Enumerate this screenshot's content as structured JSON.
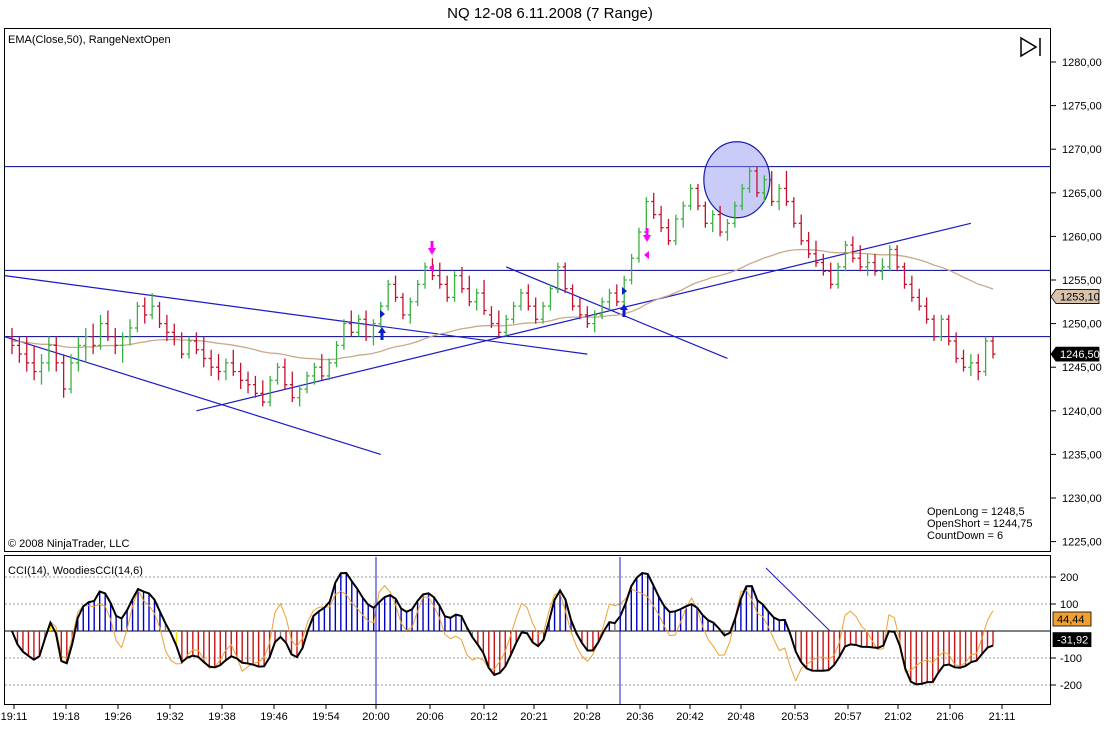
{
  "window": {
    "title": "NQ 12-08  6.11.2008 (7 Range)"
  },
  "upper_panel": {
    "indicator_label": "EMA(Close,50), RangeNextOpen",
    "copyright": "© 2008 NinjaTrader, LLC",
    "info_lines": [
      "OpenLong = 1248,5",
      "OpenShort = 1244,75",
      "CountDown = 6"
    ],
    "price_ticks": [
      "1280,00",
      "1275,00",
      "1270,00",
      "1265,00",
      "1260,00",
      "1255,00",
      "1250,00",
      "1245,00",
      "1240,00",
      "1235,00",
      "1230,00",
      "1225,00"
    ],
    "ema_label": "1253,10",
    "last_price_label": "1246,50",
    "play_icon": "play-pause-icon"
  },
  "lower_panel": {
    "indicator_label": "CCI(14), WoodiesCCI(14,6)",
    "cci_ticks": [
      "200",
      "100",
      "-100",
      "-200"
    ],
    "cci_value_label": "44,44",
    "woodies_value_label": "-31,92"
  },
  "time_axis": [
    "19:11",
    "19:18",
    "19:26",
    "19:32",
    "19:38",
    "19:46",
    "19:54",
    "20:00",
    "20:06",
    "20:12",
    "20:21",
    "20:28",
    "20:36",
    "20:42",
    "20:48",
    "20:53",
    "20:57",
    "21:02",
    "21:06",
    "21:11"
  ],
  "colors": {
    "up_bar": "#3cb043",
    "down_bar": "#c8102e",
    "trendline": "#1a1ac8",
    "ema": "#c9a98a",
    "circle_fill": "#8a8ff0",
    "buy_arrow": "#0a1ecc",
    "sell_arrow": "#ff00ff",
    "cci_orange": "#f0a030",
    "hist_blue": "#0000c8",
    "hist_red": "#c81414",
    "hist_gray": "#808080",
    "hist_yellow": "#ffe000"
  },
  "chart_data": [
    {
      "type": "candlestick",
      "title": "NQ 12-08  6.11.2008 (7 Range)",
      "ylim": [
        1225,
        1282
      ],
      "ema_last": 1253.1,
      "last_price": 1246.5,
      "horizontal_levels": [
        1268.0,
        1256.1,
        1248.5
      ],
      "bars": [
        [
          1248.5,
          1249.5,
          1246.5,
          1247.5
        ],
        [
          1247.5,
          1248.5,
          1245.5,
          1246.5
        ],
        [
          1246.5,
          1248.5,
          1244.5,
          1245.5
        ],
        [
          1245.5,
          1247.5,
          1243.5,
          1244.5
        ],
        [
          1244.5,
          1246.5,
          1243.0,
          1245.5
        ],
        [
          1245.5,
          1248.5,
          1244.5,
          1247.5
        ],
        [
          1247.5,
          1248.5,
          1244.5,
          1245.5
        ],
        [
          1245.5,
          1246.5,
          1241.5,
          1242.5
        ],
        [
          1242.5,
          1246.5,
          1242.0,
          1245.5
        ],
        [
          1245.5,
          1248.5,
          1244.5,
          1247.5
        ],
        [
          1247.5,
          1249.5,
          1245.5,
          1248.5
        ],
        [
          1248.5,
          1250.0,
          1246.5,
          1247.5
        ],
        [
          1247.5,
          1251.0,
          1247.0,
          1250.0
        ],
        [
          1250.0,
          1251.5,
          1248.0,
          1248.5
        ],
        [
          1248.5,
          1249.5,
          1246.5,
          1247.5
        ],
        [
          1247.5,
          1249.0,
          1245.5,
          1248.5
        ],
        [
          1248.5,
          1250.5,
          1247.5,
          1249.5
        ],
        [
          1249.5,
          1252.5,
          1249.0,
          1252.0
        ],
        [
          1252.0,
          1253.0,
          1250.0,
          1251.0
        ],
        [
          1251.0,
          1253.5,
          1250.5,
          1252.0
        ],
        [
          1252.0,
          1252.5,
          1249.5,
          1250.0
        ],
        [
          1250.0,
          1251.0,
          1248.0,
          1249.0
        ],
        [
          1249.0,
          1250.0,
          1247.5,
          1248.5
        ],
        [
          1248.5,
          1249.0,
          1246.0,
          1246.5
        ],
        [
          1246.5,
          1248.5,
          1246.0,
          1248.0
        ],
        [
          1248.0,
          1249.0,
          1246.5,
          1247.0
        ],
        [
          1247.0,
          1248.5,
          1245.0,
          1246.0
        ],
        [
          1246.0,
          1247.0,
          1244.0,
          1245.0
        ],
        [
          1245.0,
          1246.5,
          1243.5,
          1244.5
        ],
        [
          1244.5,
          1246.0,
          1243.5,
          1245.5
        ],
        [
          1245.5,
          1247.0,
          1244.0,
          1244.5
        ],
        [
          1244.5,
          1245.5,
          1242.5,
          1243.5
        ],
        [
          1243.5,
          1244.5,
          1242.0,
          1243.0
        ],
        [
          1243.0,
          1244.0,
          1241.5,
          1242.0
        ],
        [
          1242.0,
          1243.5,
          1240.5,
          1241.0
        ],
        [
          1241.0,
          1244.0,
          1240.5,
          1243.5
        ],
        [
          1243.5,
          1245.5,
          1243.0,
          1245.0
        ],
        [
          1245.0,
          1246.0,
          1242.5,
          1243.0
        ],
        [
          1243.0,
          1244.5,
          1241.0,
          1241.5
        ],
        [
          1241.5,
          1243.0,
          1240.5,
          1242.5
        ],
        [
          1242.5,
          1244.5,
          1242.0,
          1244.0
        ],
        [
          1244.0,
          1245.5,
          1243.0,
          1245.0
        ],
        [
          1245.0,
          1246.5,
          1243.5,
          1244.0
        ],
        [
          1244.0,
          1246.0,
          1243.5,
          1245.5
        ],
        [
          1245.5,
          1248.0,
          1245.0,
          1247.5
        ],
        [
          1247.5,
          1250.5,
          1247.0,
          1250.0
        ],
        [
          1250.0,
          1251.5,
          1248.5,
          1249.0
        ],
        [
          1249.0,
          1251.0,
          1248.5,
          1250.5
        ],
        [
          1250.5,
          1251.5,
          1248.0,
          1248.5
        ],
        [
          1248.5,
          1250.5,
          1247.5,
          1250.0
        ],
        [
          1250.0,
          1252.5,
          1249.5,
          1252.0
        ],
        [
          1252.0,
          1255.0,
          1251.5,
          1254.5
        ],
        [
          1254.5,
          1255.5,
          1252.5,
          1253.0
        ],
        [
          1253.0,
          1253.5,
          1250.5,
          1251.0
        ],
        [
          1251.0,
          1253.0,
          1250.0,
          1252.5
        ],
        [
          1252.5,
          1255.0,
          1252.0,
          1254.5
        ],
        [
          1254.5,
          1257.0,
          1254.0,
          1256.5
        ],
        [
          1256.5,
          1257.5,
          1255.0,
          1255.5
        ],
        [
          1255.5,
          1257.0,
          1254.0,
          1254.5
        ],
        [
          1254.5,
          1255.5,
          1252.5,
          1253.0
        ],
        [
          1253.0,
          1256.0,
          1252.5,
          1255.5
        ],
        [
          1255.5,
          1256.5,
          1253.5,
          1254.0
        ],
        [
          1254.0,
          1255.5,
          1252.0,
          1252.5
        ],
        [
          1252.5,
          1254.0,
          1251.5,
          1253.5
        ],
        [
          1253.5,
          1255.0,
          1251.0,
          1251.5
        ],
        [
          1251.0,
          1252.0,
          1249.5,
          1250.0
        ],
        [
          1250.0,
          1251.5,
          1248.5,
          1249.0
        ],
        [
          1249.0,
          1251.0,
          1248.5,
          1250.5
        ],
        [
          1250.5,
          1252.5,
          1250.0,
          1252.0
        ],
        [
          1252.0,
          1254.0,
          1251.5,
          1253.5
        ],
        [
          1253.5,
          1254.5,
          1251.5,
          1252.0
        ],
        [
          1252.0,
          1253.0,
          1250.0,
          1250.5
        ],
        [
          1250.5,
          1252.5,
          1250.0,
          1252.0
        ],
        [
          1252.0,
          1254.5,
          1251.5,
          1254.0
        ],
        [
          1254.0,
          1257.0,
          1253.5,
          1256.5
        ],
        [
          1256.5,
          1257.0,
          1253.5,
          1254.0
        ],
        [
          1254.0,
          1254.5,
          1251.5,
          1252.0
        ],
        [
          1252.0,
          1253.0,
          1250.5,
          1251.0
        ],
        [
          1251.0,
          1252.0,
          1249.5,
          1250.0
        ],
        [
          1250.0,
          1251.5,
          1249.0,
          1251.0
        ],
        [
          1251.0,
          1253.0,
          1250.5,
          1252.5
        ],
        [
          1252.5,
          1254.0,
          1251.5,
          1253.5
        ],
        [
          1253.5,
          1254.5,
          1252.0,
          1252.5
        ],
        [
          1252.5,
          1255.5,
          1252.0,
          1255.0
        ],
        [
          1255.0,
          1258.0,
          1254.5,
          1257.5
        ],
        [
          1257.5,
          1261.0,
          1257.0,
          1260.5
        ],
        [
          1260.5,
          1264.5,
          1260.0,
          1264.0
        ],
        [
          1264.0,
          1265.0,
          1262.0,
          1262.5
        ],
        [
          1262.5,
          1263.5,
          1260.5,
          1261.0
        ],
        [
          1261.0,
          1262.0,
          1259.0,
          1259.5
        ],
        [
          1259.5,
          1262.5,
          1259.0,
          1262.0
        ],
        [
          1262.0,
          1264.0,
          1261.0,
          1263.5
        ],
        [
          1263.5,
          1266.0,
          1263.0,
          1265.5
        ],
        [
          1265.5,
          1266.0,
          1263.0,
          1263.5
        ],
        [
          1263.5,
          1264.0,
          1261.0,
          1261.5
        ],
        [
          1261.5,
          1263.0,
          1260.5,
          1262.5
        ],
        [
          1262.5,
          1263.5,
          1260.0,
          1260.5
        ],
        [
          1260.5,
          1262.0,
          1259.5,
          1261.5
        ],
        [
          1261.5,
          1264.0,
          1261.0,
          1263.5
        ],
        [
          1263.5,
          1266.0,
          1263.0,
          1265.5
        ],
        [
          1265.5,
          1268.0,
          1265.0,
          1267.5
        ],
        [
          1267.5,
          1268.0,
          1264.5,
          1265.0
        ],
        [
          1265.0,
          1267.0,
          1264.0,
          1266.5
        ],
        [
          1266.5,
          1267.5,
          1263.5,
          1264.0
        ],
        [
          1264.0,
          1266.0,
          1263.0,
          1265.5
        ],
        [
          1265.5,
          1267.5,
          1263.5,
          1264.0
        ],
        [
          1264.0,
          1264.5,
          1261.0,
          1261.5
        ],
        [
          1261.5,
          1262.5,
          1259.0,
          1259.5
        ],
        [
          1259.5,
          1260.5,
          1257.5,
          1258.0
        ],
        [
          1258.0,
          1259.5,
          1256.5,
          1257.0
        ],
        [
          1257.0,
          1258.0,
          1255.5,
          1256.0
        ],
        [
          1256.0,
          1257.0,
          1254.0,
          1254.5
        ],
        [
          1254.5,
          1257.0,
          1254.0,
          1256.5
        ],
        [
          1256.5,
          1259.5,
          1256.0,
          1259.0
        ],
        [
          1259.0,
          1260.0,
          1257.0,
          1257.5
        ],
        [
          1257.5,
          1259.0,
          1256.0,
          1256.5
        ],
        [
          1256.5,
          1258.0,
          1255.5,
          1257.0
        ],
        [
          1257.0,
          1258.0,
          1255.5,
          1256.0
        ],
        [
          1256.0,
          1257.5,
          1255.0,
          1256.5
        ],
        [
          1256.5,
          1259.0,
          1256.0,
          1258.5
        ],
        [
          1258.5,
          1259.0,
          1256.0,
          1256.5
        ],
        [
          1256.5,
          1257.0,
          1254.0,
          1254.5
        ],
        [
          1254.5,
          1255.5,
          1252.5,
          1253.0
        ],
        [
          1253.0,
          1254.0,
          1251.5,
          1252.0
        ],
        [
          1252.0,
          1253.0,
          1250.0,
          1250.5
        ],
        [
          1250.5,
          1251.0,
          1248.0,
          1248.5
        ],
        [
          1248.5,
          1251.0,
          1248.0,
          1250.5
        ],
        [
          1250.5,
          1251.0,
          1247.5,
          1248.0
        ],
        [
          1248.0,
          1249.0,
          1245.5,
          1246.0
        ],
        [
          1246.0,
          1247.0,
          1244.5,
          1245.0
        ],
        [
          1245.0,
          1246.5,
          1244.0,
          1245.5
        ],
        [
          1245.5,
          1246.5,
          1243.5,
          1244.5
        ],
        [
          1244.5,
          1248.5,
          1244.0,
          1248.0
        ],
        [
          1248.0,
          1248.5,
          1246.0,
          1246.5
        ]
      ]
    },
    {
      "type": "line",
      "title": "CCI(14), WoodiesCCI(14,6)",
      "ylim": [
        -250,
        250
      ],
      "cci_last": 44.44,
      "woodies_last": -31.92
    }
  ]
}
